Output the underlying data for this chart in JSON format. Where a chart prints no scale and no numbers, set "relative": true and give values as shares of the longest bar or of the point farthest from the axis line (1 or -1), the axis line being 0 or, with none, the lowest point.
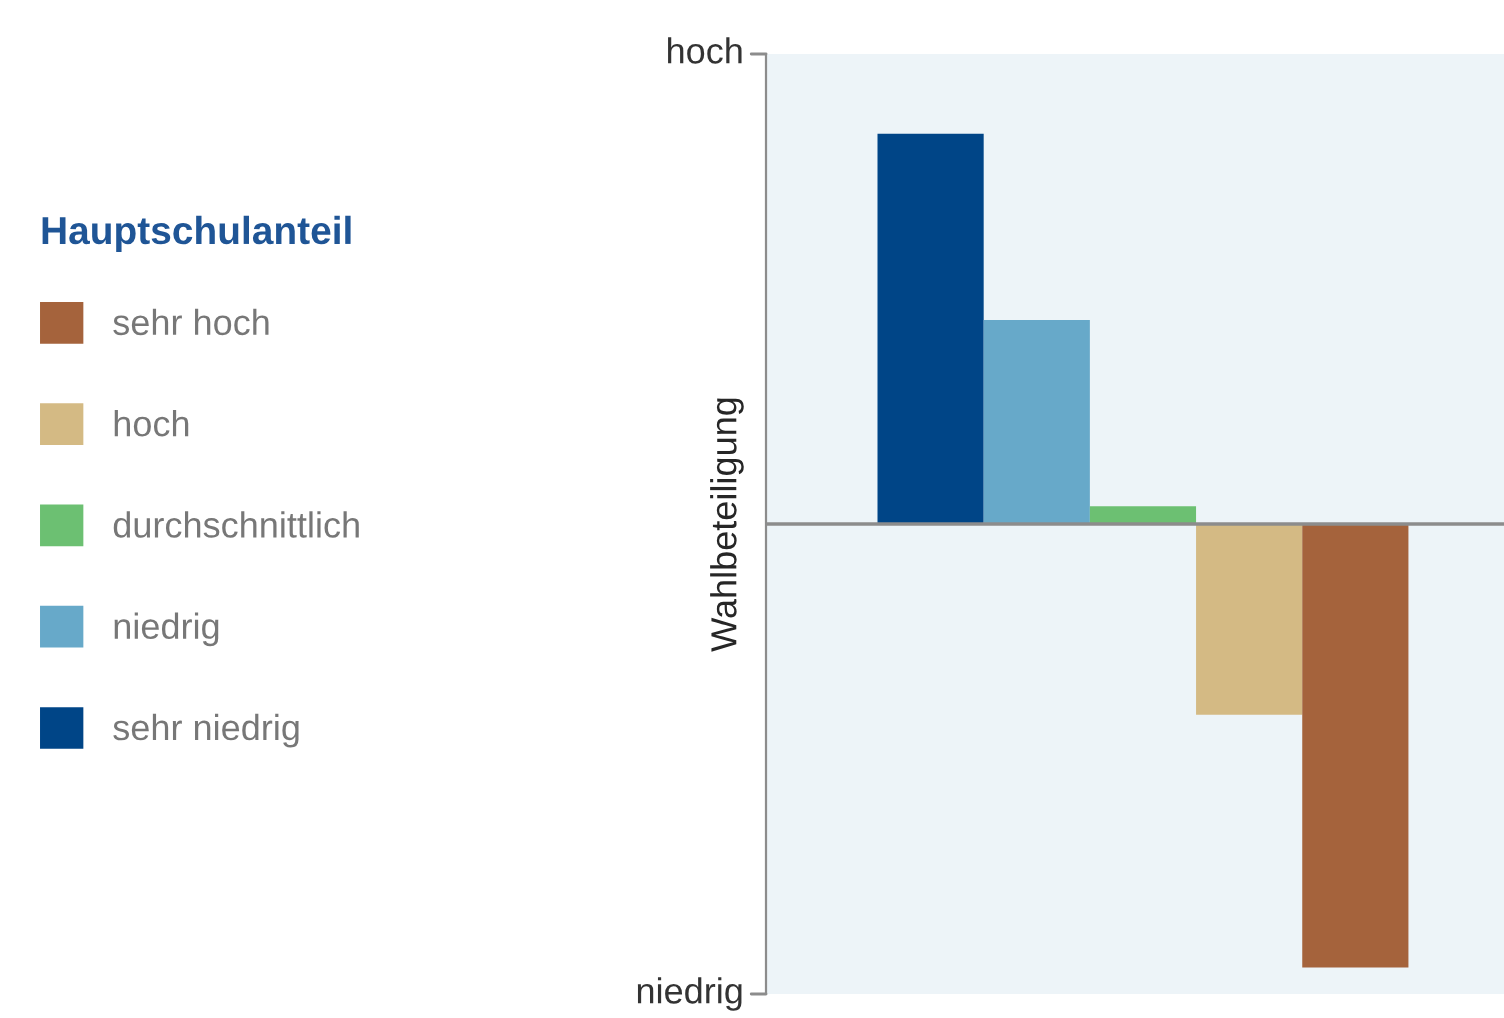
{
  "chart_data": {
    "type": "bar",
    "ylabel": "Wahlbeteiligung",
    "legend_title": "Hauptschulanteil",
    "legend": "left",
    "relative": true,
    "categories": [
      null
    ],
    "series": [
      {
        "name": "sehr niedrig",
        "color": "#004587",
        "values": [
          0.88
        ]
      },
      {
        "name": "niedrig",
        "color": "#67a9c9",
        "values": [
          0.46
        ]
      },
      {
        "name": "durchschnittlich",
        "color": "#6cc072",
        "values": [
          0.04
        ]
      },
      {
        "name": "hoch",
        "color": "#d4ba84",
        "values": [
          -0.43
        ]
      },
      {
        "name": "sehr hoch",
        "color": "#a5633c",
        "values": [
          -1
        ]
      }
    ],
    "annotations": [
      "hoch",
      "niedrig"
    ],
    "grid": false
  }
}
